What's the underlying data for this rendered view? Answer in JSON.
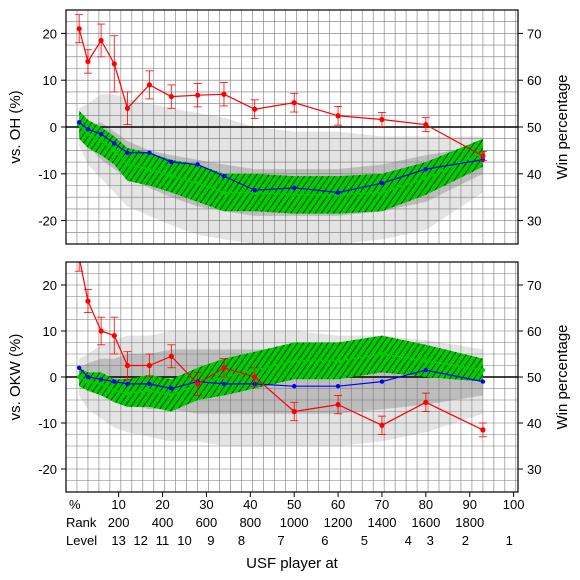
{
  "chart_data": [
    {
      "type": "line",
      "ylabel_left": "vs. OH (%)",
      "ylabel_right": "Win percentage",
      "ylim": [
        -25,
        25
      ],
      "y_ticks": [
        -20,
        -10,
        0,
        10,
        20
      ],
      "right_ylim": [
        25,
        75
      ],
      "right_ticks": [
        30,
        40,
        50,
        60,
        70
      ],
      "x": [
        1,
        3,
        6,
        9,
        12,
        17,
        22,
        28,
        34,
        41,
        50,
        60,
        70,
        80,
        93
      ],
      "series": [
        {
          "color": "#ff0000",
          "values": [
            21,
            14,
            18.5,
            13.5,
            4,
            9,
            6.5,
            6.8,
            7,
            3.8,
            5.2,
            2.4,
            1.6,
            0.5,
            -6.2
          ],
          "err": [
            3,
            2.5,
            3.5,
            6,
            3.5,
            3,
            2.5,
            2.5,
            2.5,
            2,
            2,
            2,
            1.5,
            1.5,
            1
          ]
        },
        {
          "color": "#0000ff",
          "values": [
            1,
            -0.5,
            -1.5,
            -3.5,
            -5.5,
            -5.5,
            -7.5,
            -8,
            -10.5,
            -13.5,
            -13,
            -14,
            -12,
            -9,
            -7
          ]
        },
        {
          "color": "#00cc00",
          "values": [
            0.5,
            -1.5,
            -3,
            -5,
            -8,
            -9,
            -10.5,
            -12,
            -14,
            -14,
            -14.5,
            -14.5,
            -14,
            -11,
            -5.5
          ],
          "band": [
            3,
            3,
            3,
            3,
            3.5,
            3.5,
            3.5,
            4,
            4,
            4,
            4,
            4,
            4,
            3.5,
            3
          ]
        }
      ],
      "ranges_inner": [
        [
          -2,
          2
        ],
        [
          -4,
          0
        ],
        [
          -7,
          1
        ],
        [
          -9,
          -1
        ],
        [
          -11,
          -3
        ],
        [
          -13,
          -5
        ],
        [
          -15,
          -6
        ],
        [
          -17,
          -7
        ],
        [
          -18,
          -8
        ],
        [
          -19,
          -9
        ],
        [
          -19,
          -9
        ],
        [
          -19,
          -9
        ],
        [
          -18,
          -8
        ],
        [
          -16,
          -6
        ],
        [
          -10,
          -4
        ]
      ],
      "ranges_outer": [
        [
          -4,
          4
        ],
        [
          -8,
          5
        ],
        [
          -11,
          7
        ],
        [
          -14,
          7
        ],
        [
          -17,
          6
        ],
        [
          -19,
          5
        ],
        [
          -21,
          4
        ],
        [
          -23,
          3
        ],
        [
          -24,
          2
        ],
        [
          -25,
          0
        ],
        [
          -25,
          -1
        ],
        [
          -25,
          -1
        ],
        [
          -24,
          -2
        ],
        [
          -22,
          -2
        ],
        [
          -14,
          -2
        ]
      ]
    },
    {
      "type": "line",
      "ylabel_left": "vs. OKW (%)",
      "ylabel_right": "Win percentage",
      "ylim": [
        -25,
        25
      ],
      "y_ticks": [
        -20,
        -10,
        0,
        10,
        20
      ],
      "right_ylim": [
        25,
        75
      ],
      "right_ticks": [
        30,
        40,
        50,
        60,
        70
      ],
      "x": [
        1,
        3,
        6,
        9,
        12,
        17,
        22,
        28,
        34,
        41,
        50,
        60,
        70,
        80,
        93
      ],
      "series": [
        {
          "color": "#ff0000",
          "values": [
            26,
            16.5,
            10,
            9,
            2.5,
            2.5,
            4.5,
            -1.5,
            2,
            0,
            -7.5,
            -6,
            -10.5,
            -5.5,
            -11.5
          ],
          "err": [
            3,
            2.5,
            3,
            4,
            3,
            2.5,
            2.5,
            2.5,
            2,
            2,
            2,
            2,
            2,
            2,
            1.5
          ]
        },
        {
          "color": "#0000ff",
          "values": [
            2,
            0,
            -0.5,
            -1,
            -1.5,
            -1.5,
            -2.5,
            -1,
            -1.5,
            -1.5,
            -2,
            -2,
            -1,
            1.5,
            -1
          ]
        },
        {
          "color": "#00cc00",
          "values": [
            0,
            -1,
            -1.5,
            -3,
            -3.5,
            -3,
            -4,
            -1.5,
            0,
            1.5,
            3.5,
            3.5,
            5,
            3.5,
            1.5
          ],
          "band": [
            2,
            2,
            2.5,
            2.5,
            3,
            3.5,
            3.5,
            3.5,
            4,
            4,
            4,
            4,
            4,
            3.5,
            2.5
          ]
        }
      ],
      "ranges_inner": [
        [
          -2,
          2
        ],
        [
          -3,
          3
        ],
        [
          -4,
          4
        ],
        [
          -5,
          4
        ],
        [
          -6,
          5
        ],
        [
          -7,
          5
        ],
        [
          -7,
          6
        ],
        [
          -8,
          6
        ],
        [
          -8,
          6
        ],
        [
          -8,
          6
        ],
        [
          -8,
          6
        ],
        [
          -8,
          6
        ],
        [
          -7,
          6
        ],
        [
          -6,
          5
        ],
        [
          -4,
          3
        ]
      ],
      "ranges_outer": [
        [
          -4,
          4
        ],
        [
          -7,
          5
        ],
        [
          -9,
          7
        ],
        [
          -11,
          8
        ],
        [
          -12,
          9
        ],
        [
          -13,
          9
        ],
        [
          -14,
          10
        ],
        [
          -14,
          10
        ],
        [
          -15,
          10
        ],
        [
          -15,
          10
        ],
        [
          -15,
          10
        ],
        [
          -15,
          9
        ],
        [
          -14,
          9
        ],
        [
          -12,
          8
        ],
        [
          -8,
          6
        ]
      ]
    }
  ],
  "x_axis": {
    "xlim": [
      -2,
      101
    ],
    "percent_label": "%",
    "percent_ticks": [
      "10",
      "20",
      "30",
      "40",
      "50",
      "60",
      "70",
      "80",
      "90",
      "100"
    ],
    "rank_label": "Rank",
    "rank_ticks": [
      "200",
      "400",
      "600",
      "800",
      "1000",
      "1200",
      "1400",
      "1600",
      "1800"
    ],
    "level_label": "Level",
    "level_ticks": [
      "13",
      "12",
      "11",
      "10",
      "9",
      "8",
      "7",
      "6",
      "5",
      "4",
      "3",
      "2",
      "1"
    ],
    "xlabel": "USF player at"
  },
  "tick_positions": {
    "percent": [
      10,
      20,
      30,
      40,
      50,
      60,
      70,
      80,
      90,
      100
    ],
    "rank": [
      10,
      20,
      30,
      40,
      50,
      60,
      70,
      80,
      90
    ],
    "level": [
      10,
      15,
      20,
      25,
      31,
      38,
      47,
      57,
      66,
      76,
      81,
      89,
      99
    ]
  },
  "colors": {
    "red": "#ff0000",
    "blue": "#0000ff",
    "green": "#00cc00",
    "band_outer": "#e4e4e4",
    "band_inner": "#bdbdbd",
    "hatch": "#004400"
  }
}
